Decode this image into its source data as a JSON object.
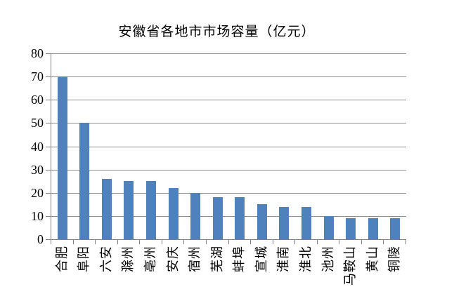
{
  "chart_data": {
    "type": "bar",
    "title": "安徽省各地市市场容量（亿元）",
    "categories": [
      "合肥",
      "阜阳",
      "六安",
      "滁州",
      "亳州",
      "安庆",
      "宿州",
      "芜湖",
      "蚌埠",
      "宣城",
      "淮南",
      "淮北",
      "池州",
      "马鞍山",
      "黄山",
      "铜陵"
    ],
    "values": [
      70,
      50,
      26,
      25,
      25,
      22,
      20,
      18,
      18,
      15,
      14,
      14,
      10,
      9,
      9,
      9
    ],
    "xlabel": "",
    "ylabel": "",
    "ylim": [
      0,
      80
    ],
    "yticks": [
      0,
      10,
      20,
      30,
      40,
      50,
      60,
      70,
      80
    ],
    "grid": true,
    "legend": false,
    "bar_color": "#4F81BD",
    "gridline_color": "#8C8C8C",
    "axis_color": "#808080",
    "background_color": "#FFFFFF"
  }
}
